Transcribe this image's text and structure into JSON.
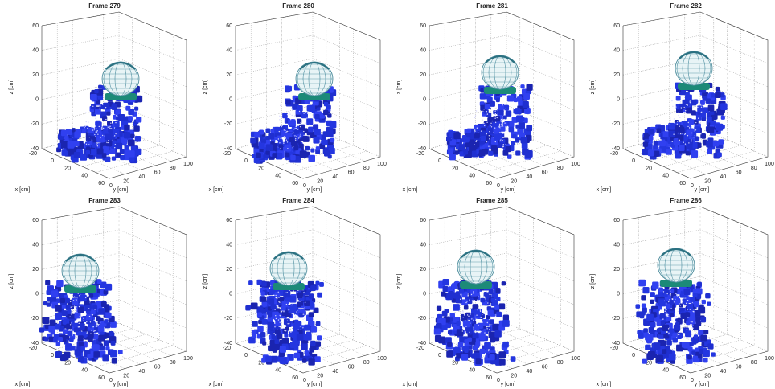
{
  "panels": [
    {
      "title": "Frame 279"
    },
    {
      "title": "Frame 280"
    },
    {
      "title": "Frame 281"
    },
    {
      "title": "Frame 282"
    },
    {
      "title": "Frame 283"
    },
    {
      "title": "Frame 284"
    },
    {
      "title": "Frame 285"
    },
    {
      "title": "Frame 286"
    }
  ],
  "axes": {
    "z_label": "z [cm]",
    "x_label": "x [cm]",
    "y_label": "y [cm]",
    "z_ticks": [
      60,
      40,
      20,
      0,
      -20,
      -40
    ],
    "x_ticks": [
      -20,
      0,
      20,
      40,
      60
    ],
    "y_ticks": [
      0,
      20,
      40,
      60,
      80,
      100
    ]
  }
}
